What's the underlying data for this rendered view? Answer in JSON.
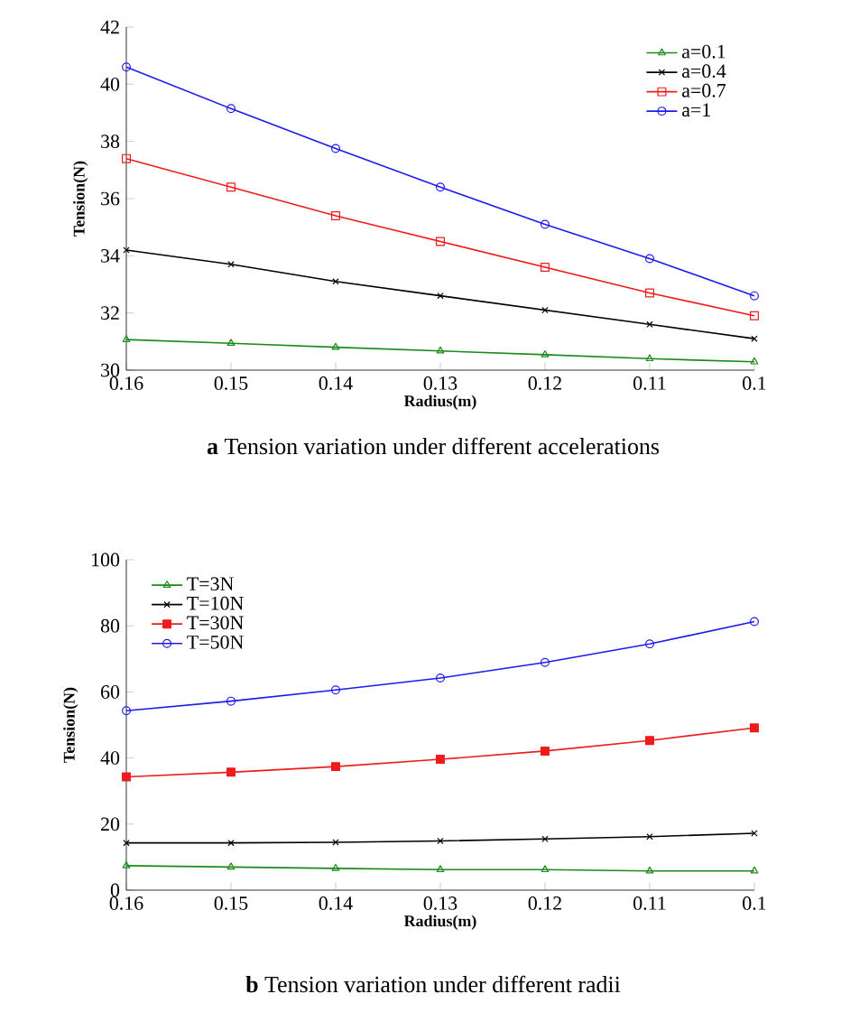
{
  "chart_data": [
    {
      "type": "line",
      "title": "**a** Tension variation under different accelerations",
      "xlabel": "Radius(m)",
      "ylabel": "Tension(N)",
      "x": [
        0.16,
        0.15,
        0.14,
        0.13,
        0.12,
        0.11,
        0.1
      ],
      "xlim": [
        0.16,
        0.1
      ],
      "xticks": [
        0.16,
        0.15,
        0.14,
        0.13,
        0.12,
        0.11,
        0.1
      ],
      "ylim": [
        30,
        42
      ],
      "yticks": [
        30,
        32,
        34,
        36,
        38,
        40,
        42
      ],
      "legend": "top right",
      "grid": false,
      "series": [
        {
          "name": "a=0.1",
          "color": "#1a8a1a",
          "marker": "triangle",
          "values": [
            31.07,
            30.94,
            30.8,
            30.67,
            30.54,
            30.4,
            30.29
          ]
        },
        {
          "name": "a=0.4",
          "color": "#000000",
          "marker": "cross",
          "values": [
            34.2,
            33.7,
            33.1,
            32.6,
            32.1,
            31.6,
            31.1
          ]
        },
        {
          "name": "a=0.7",
          "color": "#ee1c1c",
          "marker": "square",
          "values": [
            37.4,
            36.4,
            35.4,
            34.5,
            33.6,
            32.7,
            31.9
          ]
        },
        {
          "name": "a=1",
          "color": "#1c1cee",
          "marker": "circle",
          "values": [
            40.6,
            39.15,
            37.75,
            36.4,
            35.1,
            33.9,
            32.6
          ]
        }
      ]
    },
    {
      "type": "line",
      "title": "**b** Tension variation under different radii",
      "xlabel": "Radius(m)",
      "ylabel": "Tension(N)",
      "x": [
        0.16,
        0.15,
        0.14,
        0.13,
        0.12,
        0.11,
        0.1
      ],
      "xlim": [
        0.16,
        0.1
      ],
      "xticks": [
        0.16,
        0.15,
        0.14,
        0.13,
        0.12,
        0.11,
        0.1
      ],
      "ylim": [
        0,
        100
      ],
      "yticks": [
        0,
        20,
        40,
        60,
        80,
        100
      ],
      "legend": "top left",
      "grid": false,
      "series": [
        {
          "name": "T=3N",
          "color": "#1a8a1a",
          "marker": "triangle",
          "values": [
            7.4,
            7.0,
            6.6,
            6.2,
            6.2,
            5.8,
            5.8
          ]
        },
        {
          "name": "T=10N",
          "color": "#000000",
          "marker": "cross",
          "values": [
            14.3,
            14.3,
            14.5,
            14.9,
            15.5,
            16.2,
            17.2
          ]
        },
        {
          "name": "T=30N",
          "color": "#ee1c1c",
          "marker": "square*",
          "values": [
            34.3,
            35.7,
            37.4,
            39.6,
            42.1,
            45.3,
            49.1
          ]
        },
        {
          "name": "T=50N",
          "color": "#1c1cee",
          "marker": "circle",
          "values": [
            54.3,
            57.2,
            60.6,
            64.2,
            68.9,
            74.5,
            81.3
          ]
        }
      ]
    }
  ]
}
